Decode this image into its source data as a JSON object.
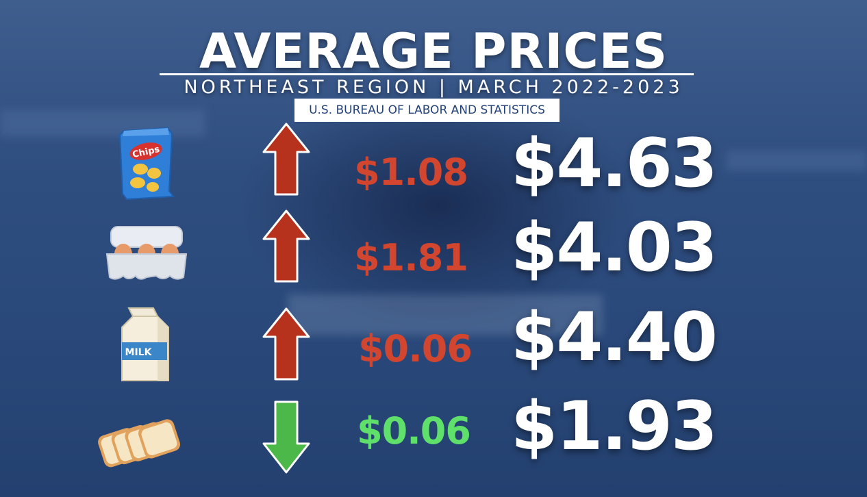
{
  "title": "AVERAGE PRICES",
  "subtitle": "NORTHEAST REGION | MARCH 2022-2023",
  "source": "U.S. BUREAU OF LABOR AND STATISTICS",
  "items": [
    {
      "icon": "chips-bag-icon",
      "icon_label": "Chips",
      "direction": "up",
      "change": "$1.08",
      "price": "$4.63"
    },
    {
      "icon": "egg-carton-icon",
      "direction": "up",
      "change": "$1.81",
      "price": "$4.03"
    },
    {
      "icon": "milk-carton-icon",
      "icon_label": "MILK",
      "direction": "up",
      "change": "$0.06",
      "price": "$4.40"
    },
    {
      "icon": "bread-slices-icon",
      "direction": "down",
      "change": "$0.06",
      "price": "$1.93"
    }
  ],
  "colors": {
    "up": "#d2462f",
    "down": "#5fe06a",
    "arrow_up": "#b7321d",
    "arrow_down": "#4cb84a",
    "background": "#2f4e80"
  }
}
